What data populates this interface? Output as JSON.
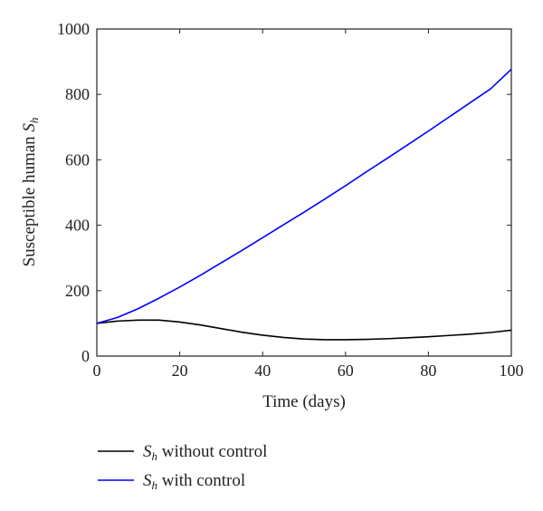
{
  "chart_data": {
    "type": "line",
    "xlabel": "Time (days)",
    "ylabel": {
      "text": "Susceptible human ",
      "symbol": "S",
      "subscript": "h"
    },
    "xlim": [
      0,
      100
    ],
    "ylim": [
      0,
      1000
    ],
    "xticks": [
      0,
      20,
      40,
      60,
      80,
      100
    ],
    "yticks": [
      0,
      200,
      400,
      600,
      800,
      1000
    ],
    "grid": false,
    "legend_position": "below",
    "series": [
      {
        "name": "S_h without control",
        "legend": {
          "symbol": "S",
          "subscript": "h",
          "text": " without control"
        },
        "color": "#000000",
        "x": [
          0,
          5,
          10,
          15,
          20,
          25,
          30,
          35,
          40,
          45,
          50,
          55,
          60,
          65,
          70,
          75,
          80,
          85,
          90,
          95,
          100
        ],
        "y": [
          100,
          107,
          110,
          110,
          104,
          95,
          84,
          73,
          64,
          57,
          52,
          50,
          50,
          51,
          53,
          56,
          59,
          63,
          67,
          72,
          79
        ]
      },
      {
        "name": "S_h with control",
        "legend": {
          "symbol": "S",
          "subscript": "h",
          "text": " with control"
        },
        "color": "#0000ff",
        "x": [
          0,
          5,
          10,
          15,
          20,
          25,
          30,
          35,
          40,
          45,
          50,
          55,
          60,
          65,
          70,
          75,
          80,
          85,
          90,
          95,
          100
        ],
        "y": [
          100,
          118,
          145,
          177,
          211,
          247,
          285,
          323,
          362,
          401,
          440,
          480,
          521,
          563,
          604,
          646,
          688,
          731,
          774,
          817,
          877
        ]
      }
    ]
  }
}
